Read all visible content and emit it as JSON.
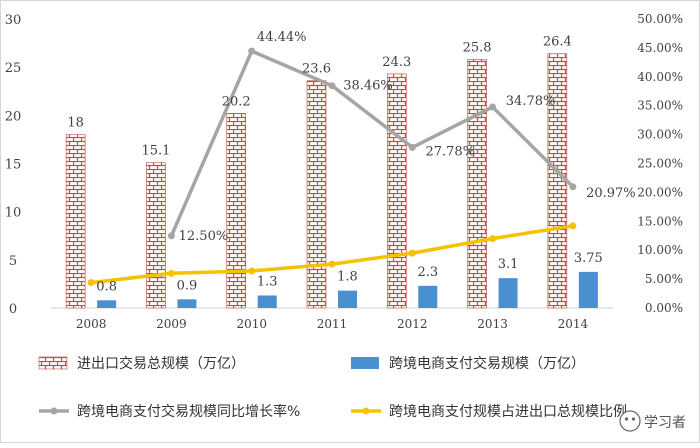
{
  "chart_data": {
    "type": "bar+line",
    "categories": [
      "2008",
      "2009",
      "2010",
      "2011",
      "2012",
      "2013",
      "2014"
    ],
    "series": [
      {
        "name": "进出口交易总规模（万亿）",
        "kind": "bar",
        "axis": "left",
        "pattern": "brick",
        "color": "#c0504d",
        "values": [
          18,
          15.1,
          20.2,
          23.6,
          24.3,
          25.8,
          26.4
        ],
        "labels": [
          "18",
          "15.1",
          "20.2",
          "23.6",
          "24.3",
          "25.8",
          "26.4"
        ]
      },
      {
        "name": "跨境电商支付交易规模（万亿）",
        "kind": "bar",
        "axis": "left",
        "color": "#4a90d0",
        "values": [
          0.8,
          0.9,
          1.3,
          1.8,
          2.3,
          3.1,
          3.75
        ],
        "labels": [
          "0.8",
          "0.9",
          "1.3",
          "1.8",
          "2.3",
          "3.1",
          "3.75"
        ]
      },
      {
        "name": "跨境电商支付交易规模同比增长率%",
        "kind": "line",
        "axis": "right",
        "color": "#a5a5a5",
        "values": [
          null,
          12.5,
          44.44,
          38.46,
          27.78,
          34.78,
          20.97
        ],
        "labels": [
          "",
          "12.50%",
          "44.44%",
          "38.46%",
          "27.78%",
          "34.78%",
          "20.97%"
        ]
      },
      {
        "name": "跨境电商支付规模占进出口总规模比例",
        "kind": "line",
        "axis": "right",
        "color": "#f5c200",
        "values": [
          4.4,
          6.0,
          6.4,
          7.6,
          9.5,
          12.0,
          14.2
        ],
        "labels": []
      }
    ],
    "y_left": {
      "min": 0,
      "max": 30,
      "ticks": [
        "0",
        "5",
        "10",
        "15",
        "20",
        "25",
        "30"
      ]
    },
    "y_right": {
      "min": 0,
      "max": 50,
      "ticks": [
        "0.00%",
        "5.00%",
        "10.00%",
        "15.00%",
        "20.00%",
        "25.00%",
        "30.00%",
        "35.00%",
        "40.00%",
        "45.00%",
        "50.00%"
      ]
    },
    "gridlines": false,
    "legend_position": "bottom"
  },
  "watermark": {
    "text": "学习者"
  }
}
